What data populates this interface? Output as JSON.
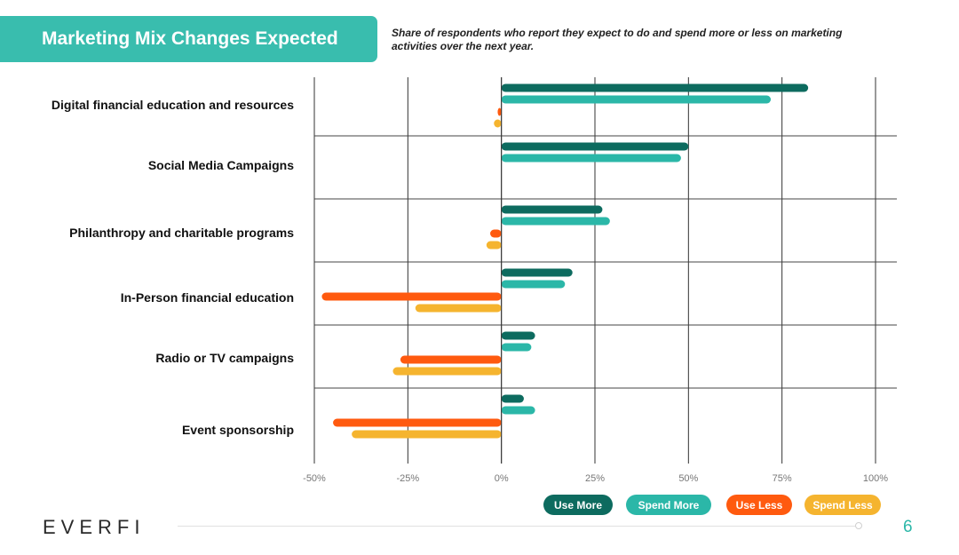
{
  "header": {
    "title": "Marketing Mix Changes Expected",
    "subtitle": "Share of respondents who report they expect to do and spend more or less on marketing activities over the next year."
  },
  "colors": {
    "use_more": "#0d6b5f",
    "spend_more": "#2bb7a8",
    "use_less": "#ff5a0f",
    "spend_less": "#f5b42f",
    "banner": "#39bdae",
    "page_number": "#2bb7a8"
  },
  "chart_data": {
    "type": "bar",
    "orientation": "horizontal",
    "categories": [
      "Digital financial education and resources",
      "Social Media Campaigns",
      "Philanthropy and charitable programs",
      "In-Person financial education",
      "Radio or TV campaigns",
      "Event sponsorship"
    ],
    "series": [
      {
        "name": "Use More",
        "values": [
          82,
          50,
          27,
          19,
          9,
          6
        ]
      },
      {
        "name": "Spend More",
        "values": [
          72,
          48,
          29,
          17,
          8,
          9
        ]
      },
      {
        "name": "Use Less",
        "values": [
          -1,
          0,
          -3,
          -48,
          -27,
          -45
        ]
      },
      {
        "name": "Spend Less",
        "values": [
          -2,
          0,
          -4,
          -23,
          -29,
          -40
        ]
      }
    ],
    "xlim": [
      -50,
      100
    ],
    "x_ticks": [
      -50,
      -25,
      0,
      25,
      50,
      75,
      100
    ],
    "x_tick_labels": [
      "-50%",
      "-25%",
      "0%",
      "25%",
      "50%",
      "75%",
      "100%"
    ],
    "legend_position": "bottom-right",
    "grid": true
  },
  "legend": [
    "Use More",
    "Spend More",
    "Use Less",
    "Spend Less"
  ],
  "footer": {
    "logo": "EVERFI",
    "page_number": "6"
  }
}
